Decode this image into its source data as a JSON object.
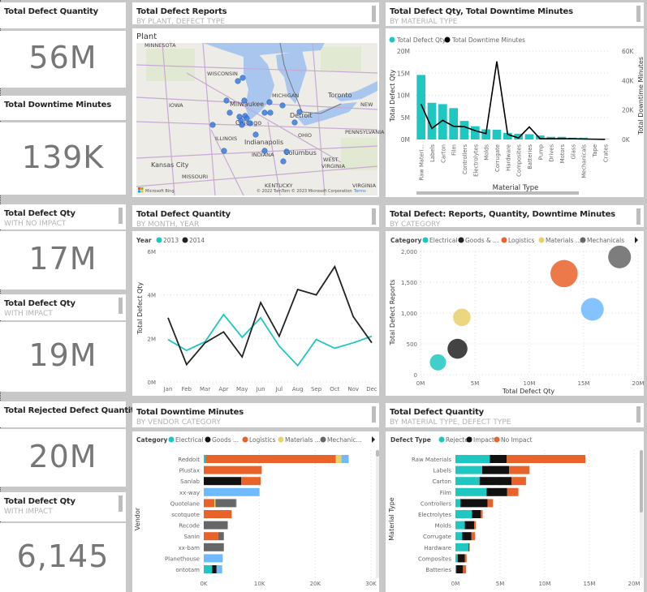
{
  "kpis": [
    {
      "title": "Total Defect Quantity",
      "subtitle": "",
      "value": "56M"
    },
    {
      "title": "Total Downtime Minutes",
      "subtitle": "",
      "value": "139K"
    },
    {
      "title": "Total Defect Qty",
      "subtitle": "WITH NO IMPACT",
      "value": "17M"
    },
    {
      "title": "Total Defect Qty",
      "subtitle": "WITH IMPACT",
      "value": "19M"
    },
    {
      "title": "Total Rejected Defect Quantity",
      "subtitle": "",
      "value": "20M"
    },
    {
      "title": "Total Defect Qty",
      "subtitle": "WITH IMPACT",
      "value": "6,145"
    }
  ],
  "map": {
    "title": "Total Defect Reports",
    "subtitle": "BY PLANT, DEFECT TYPE",
    "legend_title": "Plant",
    "labels": [
      "MINNESOTA",
      "WISCONSIN",
      "IOWA",
      "Milwaukee",
      "MICHIGAN",
      "Toronto",
      "NEW",
      "Detroit",
      "Chicago",
      "ILLINOIS",
      "OHIO",
      "PENNSYLVANIA",
      "Indianapolis",
      "INDIANA",
      "Columbus",
      "Kansas City",
      "WEST",
      "VIRGINIA",
      "MISSOURI",
      "KENTUCKY",
      "VIRGINIA"
    ],
    "attribution": "© 2022 TomTom © 2023 Microsoft Corporation",
    "terms": "Terms",
    "logo": "Microsoft Bing",
    "dot_color": "#3a7de0"
  },
  "colors": {
    "teal": "#1ec8c0",
    "black": "#111111",
    "orange": "#e8622a",
    "yellow": "#e8d06a",
    "gray": "#666666",
    "lightblue": "#6fb9ff"
  },
  "chart_data": [
    {
      "type": "bar+line",
      "title": "Total Defect Qty, Total Downtime Minutes",
      "subtitle": "BY MATERIAL TYPE",
      "legend": [
        "Total Defect Qty",
        "Total Downtime Minutes"
      ],
      "xlabel": "Material Type",
      "ylabel": "Total Defect Qty",
      "y2label": "Total Downtime Minutes",
      "categories": [
        "Raw Materi...",
        "Labels",
        "Carton",
        "Film",
        "Controllers",
        "Electrolytes",
        "Molds",
        "Corrugate",
        "Hardware",
        "Composites",
        "Batteries",
        "Pump",
        "Drives",
        "Motors",
        "Glass",
        "Mechanicals",
        "Tape",
        "Crates"
      ],
      "bar_values": [
        14.6,
        8.3,
        8.0,
        7.1,
        4.2,
        3.0,
        2.3,
        2.2,
        1.5,
        1.3,
        1.2,
        0.9,
        0.6,
        0.6,
        0.4,
        0.4,
        0.2,
        0.1
      ],
      "line_values": [
        24,
        7.5,
        13,
        9,
        8.7,
        6,
        4,
        53,
        3.5,
        1,
        8.5,
        0.5,
        0.5,
        0.5,
        0.5,
        0.3,
        0.2,
        0.1
      ],
      "bar_unit": "M",
      "line_unit": "K",
      "yticks": [
        "0M",
        "5M",
        "10M",
        "15M",
        "20M"
      ],
      "y2ticks": [
        "0K",
        "20K",
        "40K",
        "60K"
      ],
      "ylim": [
        0,
        20
      ],
      "y2lim": [
        0,
        60
      ]
    },
    {
      "type": "line",
      "title": "Total Defect Quantity",
      "subtitle": "BY MONTH, YEAR",
      "legend_title": "Year",
      "ylabel": "Total Defect Qty",
      "categories": [
        "Jan",
        "Feb",
        "Mar",
        "Apr",
        "May",
        "Jun",
        "Jul",
        "Aug",
        "Sep",
        "Oct",
        "Nov",
        "Dec"
      ],
      "series": [
        {
          "name": "2013",
          "values": [
            1.95,
            1.45,
            1.85,
            3.1,
            2.05,
            2.95,
            1.65,
            0.75,
            1.95,
            1.55,
            1.8,
            2.1
          ]
        },
        {
          "name": "2014",
          "values": [
            2.95,
            0.8,
            1.8,
            2.3,
            1.15,
            3.65,
            2.1,
            4.25,
            4.0,
            5.3,
            3.0,
            1.8
          ]
        }
      ],
      "yticks": [
        "0M",
        "2M",
        "4M",
        "6M"
      ],
      "ylim": [
        0,
        6
      ]
    },
    {
      "type": "scatter",
      "title": "Total Defect: Reports, Quantity, Downtime Minutes",
      "subtitle": "BY CATEGORY",
      "legend_title": "Category",
      "xlabel": "Total Defect Qty",
      "ylabel": "Total Defect Reports",
      "series": [
        {
          "name": "Electrical",
          "x": 1.6,
          "y": 200,
          "size": 1
        },
        {
          "name": "Goods & ...",
          "x": 3.4,
          "y": 420,
          "size": 2
        },
        {
          "name": "Logistics",
          "x": 13.2,
          "y": 1640,
          "size": 5
        },
        {
          "name": "Materials ...",
          "x": 3.8,
          "y": 930,
          "size": 1.3
        },
        {
          "name": "Mechanicals",
          "x": 18.3,
          "y": 1910,
          "size": 3
        },
        {
          "name": "",
          "x": 15.8,
          "y": 1060,
          "size": 3
        }
      ],
      "xticks": [
        "0M",
        "5M",
        "10M",
        "15M",
        "20M"
      ],
      "yticks": [
        "0",
        "500",
        "1,000",
        "1,500",
        "2,000"
      ],
      "xlim": [
        0,
        20
      ],
      "ylim": [
        0,
        2000
      ]
    },
    {
      "type": "stacked-bar-horizontal",
      "title": "Total Downtime Minutes",
      "subtitle": "BY VENDOR CATEGORY",
      "legend_title": "Category",
      "ylabel": "Vendor",
      "legend": [
        "Electrical",
        "Goods ...",
        "Logistics",
        "Materials ...",
        "Mechanic..."
      ],
      "categories": [
        "Reddoit",
        "Plustax",
        "Sanlab",
        "xx-way",
        "Quotelane",
        "scotquote",
        "Recode",
        "Sanin",
        "xx-bam",
        "Planethouse",
        "ontotam"
      ],
      "series": [
        {
          "name": "Electrical",
          "values": [
            0.3,
            0,
            0,
            0,
            0,
            0,
            0,
            0,
            0,
            0,
            1.5
          ]
        },
        {
          "name": "Goods ...",
          "values": [
            0,
            0,
            6.7,
            0,
            0,
            0,
            0,
            0,
            0,
            0,
            0.8
          ]
        },
        {
          "name": "Logistics",
          "values": [
            23.4,
            10.4,
            3.5,
            0,
            1.9,
            5,
            0,
            2.6,
            0,
            0,
            0
          ]
        },
        {
          "name": "Materials ...",
          "values": [
            1.0,
            0,
            0,
            0,
            0.2,
            0,
            0,
            0,
            0,
            0,
            0
          ]
        },
        {
          "name": "Mechanic...",
          "values": [
            0,
            0,
            0,
            0,
            3.7,
            0,
            4.3,
            1.0,
            3.6,
            0,
            0
          ]
        },
        {
          "name": "",
          "values": [
            1.3,
            0,
            0,
            10,
            0.1,
            0,
            0,
            0,
            0,
            3.4,
            1.0
          ]
        }
      ],
      "xticks": [
        "0K",
        "10K",
        "20K",
        "30K"
      ],
      "xlim": [
        0,
        30
      ]
    },
    {
      "type": "stacked-bar-horizontal",
      "title": "Total Defect Quantity",
      "subtitle": "BY MATERIAL TYPE, DEFECT TYPE",
      "legend_title": "Defect Type",
      "ylabel": "Material Type",
      "legend": [
        "Rejected",
        "Impact",
        "No Impact"
      ],
      "categories": [
        "Raw Materials",
        "Labels",
        "Carton",
        "Film",
        "Controllers",
        "Electrolytes",
        "Molds",
        "Corrugate",
        "Hardware",
        "Composites",
        "Batteries"
      ],
      "series": [
        {
          "name": "Rejected",
          "values": [
            3.85,
            3.0,
            2.7,
            3.5,
            0.55,
            1.85,
            1.05,
            0.75,
            1.5,
            0.25,
            0.1
          ]
        },
        {
          "name": "Impact",
          "values": [
            1.9,
            3.0,
            3.6,
            2.3,
            3.05,
            1.0,
            1.05,
            1.05,
            0.05,
            0.8,
            0.75
          ]
        },
        {
          "name": "No Impact",
          "values": [
            8.8,
            2.3,
            1.6,
            1.25,
            0.6,
            0.2,
            0.2,
            0.4,
            0.05,
            0.2,
            0.35
          ]
        }
      ],
      "xticks": [
        "0M",
        "5M",
        "10M",
        "15M",
        "20M"
      ],
      "xlim": [
        0,
        20
      ]
    }
  ]
}
